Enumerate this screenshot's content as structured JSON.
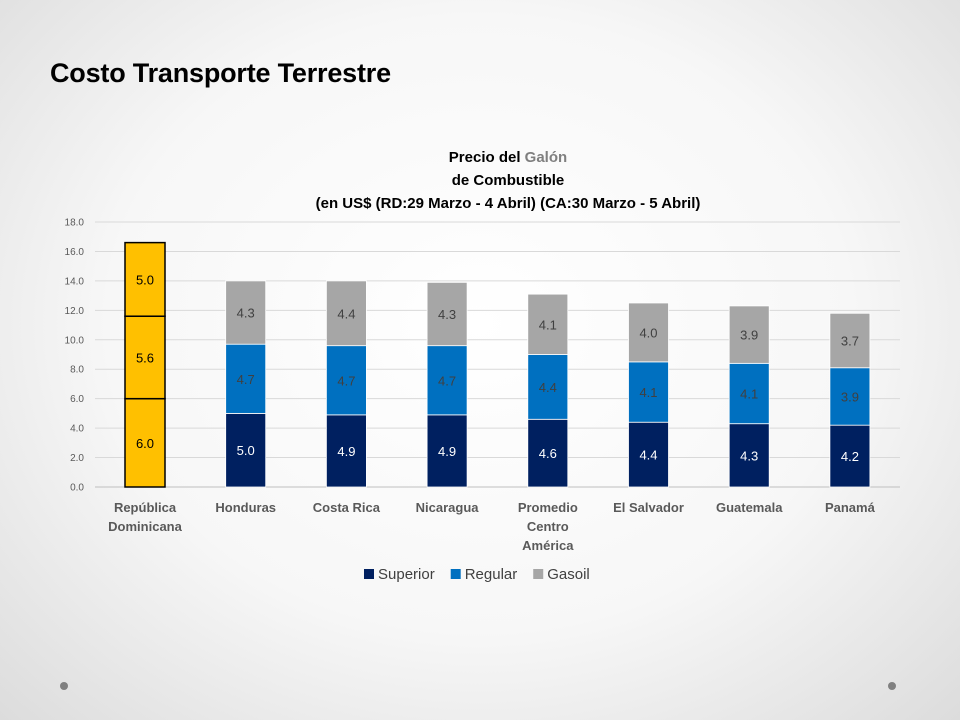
{
  "slide": {
    "title": "Costo Transporte Terrestre"
  },
  "chart_data": {
    "type": "bar",
    "stacked": true,
    "title_lines": [
      [
        {
          "text": "Precio del ",
          "gray": false
        },
        {
          "text": "Galón",
          "gray": true
        }
      ],
      [
        {
          "text": "de Combustible",
          "gray": false
        }
      ],
      [
        {
          "text": "(en US$ (RD:29 Marzo - 4 Abril) (CA:30 Marzo - 5 Abril)",
          "gray": false
        }
      ]
    ],
    "categories": [
      [
        "República",
        "Dominicana"
      ],
      [
        "Honduras"
      ],
      [
        "Costa Rica"
      ],
      [
        "Nicaragua"
      ],
      [
        "Promedio",
        "Centro",
        "América"
      ],
      [
        "El Salvador"
      ],
      [
        "Guatemala"
      ],
      [
        "Panamá"
      ]
    ],
    "series": [
      {
        "name": "Superior",
        "color": "#002060",
        "label_color": "#ffffff",
        "values": [
          6.0,
          5.0,
          4.9,
          4.9,
          4.6,
          4.4,
          4.3,
          4.2
        ],
        "labels": [
          "6.0",
          "5.0",
          "4.9",
          "4.9",
          "4.6",
          "4.4",
          "4.3",
          "4.2"
        ]
      },
      {
        "name": "Regular",
        "color": "#0070c0",
        "label_color": "#404040",
        "values": [
          5.6,
          4.7,
          4.7,
          4.7,
          4.4,
          4.1,
          4.1,
          3.9
        ],
        "labels": [
          "5.6",
          "4.7",
          "4.7",
          "4.7",
          "4.4",
          "4.1",
          "4.1",
          "3.9"
        ]
      },
      {
        "name": "Gasoil",
        "color": "#a6a6a6",
        "label_color": "#404040",
        "values": [
          5.0,
          4.3,
          4.4,
          4.3,
          4.1,
          4.0,
          3.9,
          3.7
        ],
        "labels": [
          "5.0",
          "4.3",
          "4.4",
          "4.3",
          "4.1",
          "4.0",
          "3.9",
          "3.7"
        ]
      }
    ],
    "highlight": {
      "category_index": 0,
      "color": "#ffc000",
      "border": "#000000",
      "label_color": "#000000"
    },
    "ylim": [
      0,
      18
    ],
    "yticks": [
      "0.0",
      "2.0",
      "4.0",
      "6.0",
      "8.0",
      "10.0",
      "12.0",
      "14.0",
      "16.0",
      "18.0"
    ],
    "grid": true,
    "legend_position": "bottom"
  }
}
